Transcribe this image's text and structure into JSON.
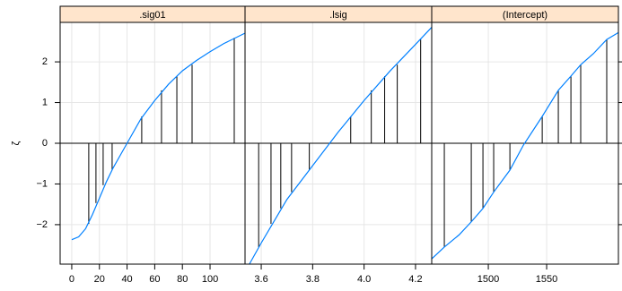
{
  "chart_data": {
    "type": "line",
    "ylabel": "ζ",
    "ylim": [
      -2.97,
      2.97
    ],
    "yticks": [
      {
        "value": -2,
        "label": "−2"
      },
      {
        "value": -1,
        "label": "−1"
      },
      0,
      1,
      2
    ],
    "grid": true,
    "color": "#0080ff",
    "panels": [
      {
        "title": ".sig01",
        "xlim": [
          -8.4,
          125.3
        ],
        "xticks": [
          0,
          20,
          40,
          60,
          80,
          100
        ],
        "curve": {
          "x": [
            0,
            5,
            10,
            15,
            20,
            25,
            30,
            40,
            50,
            60,
            70,
            80,
            90,
            100,
            110,
            125
          ],
          "values": [
            -2.37,
            -2.3,
            -2.1,
            -1.75,
            -1.35,
            -0.95,
            -0.6,
            0,
            0.6,
            1.05,
            1.45,
            1.78,
            2.03,
            2.25,
            2.45,
            2.7
          ]
        },
        "needles": {
          "x": [
            12.3,
            17.5,
            22.7,
            29.2,
            50.6,
            64.9,
            76,
            87,
            117.5
          ],
          "values": [
            -1.98,
            -1.47,
            -1.03,
            -0.66,
            0.66,
            1.3,
            1.65,
            1.93,
            2.59
          ]
        }
      },
      {
        "title": ".lsig",
        "xlim": [
          3.537,
          4.263
        ],
        "xticks": [
          3.6,
          3.8,
          {
            "value": 4,
            "label": "4.0"
          },
          4.2
        ],
        "curve": {
          "x": [
            3.554,
            3.6,
            3.7,
            3.8,
            3.9,
            4.0,
            4.1,
            4.2,
            4.263
          ],
          "values": [
            -2.97,
            -2.45,
            -1.38,
            -0.55,
            0.28,
            1.05,
            1.77,
            2.43,
            2.85
          ]
        },
        "needles": {
          "x": [
            3.59,
            3.638,
            3.676,
            3.718,
            3.787,
            3.948,
            4.028,
            4.08,
            4.129,
            4.22
          ],
          "values": [
            -2.55,
            -1.98,
            -1.6,
            -1.2,
            -0.66,
            0.66,
            1.3,
            1.65,
            1.93,
            2.55
          ]
        }
      },
      {
        "title": "(Intercept)",
        "xlim": [
          1451.5,
          1611.5
        ],
        "xticks": [
          1500,
          1550
        ],
        "curve": {
          "x": [
            1451.5,
            1462.3,
            1475,
            1485.4,
            1495.4,
            1504.6,
            1518.5,
            1530,
            1546.2,
            1560,
            1570.8,
            1579.2,
            1590,
            1601.5,
            1611.5
          ],
          "values": [
            -2.84,
            -2.55,
            -2.25,
            -1.93,
            -1.6,
            -1.2,
            -0.66,
            -0.05,
            0.66,
            1.3,
            1.65,
            1.93,
            2.2,
            2.55,
            2.72
          ]
        },
        "needles": {
          "x": [
            1462.3,
            1485.4,
            1495.4,
            1504.6,
            1518.5,
            1546.2,
            1560,
            1570.8,
            1579.2,
            1601.5
          ],
          "values": [
            -2.55,
            -1.93,
            -1.6,
            -1.2,
            -0.66,
            0.66,
            1.3,
            1.65,
            1.93,
            2.55
          ]
        }
      }
    ]
  }
}
